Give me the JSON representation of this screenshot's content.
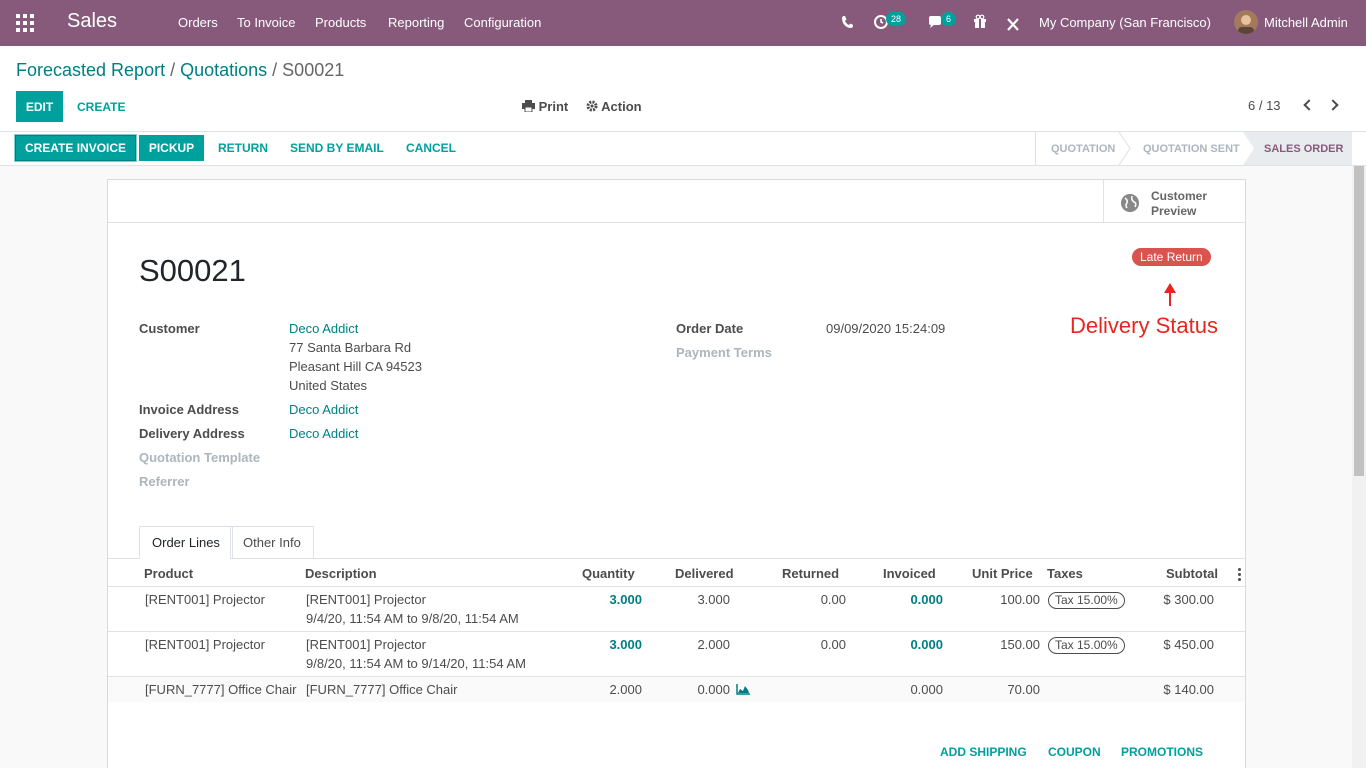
{
  "topbar": {
    "app_name": "Sales",
    "menus": [
      "Orders",
      "To Invoice",
      "Products",
      "Reporting",
      "Configuration"
    ],
    "activity_count": "28",
    "message_count": "6",
    "company": "My Company (San Francisco)",
    "user": "Mitchell Admin"
  },
  "breadcrumb": {
    "items": [
      "Forecasted Report",
      "Quotations"
    ],
    "current": "S00021"
  },
  "actions": {
    "edit": "EDIT",
    "create": "CREATE",
    "print": "Print",
    "action": "Action",
    "pager": "6 / 13"
  },
  "statusbar": {
    "buttons": [
      "CREATE INVOICE",
      "PICKUP",
      "RETURN",
      "SEND BY EMAIL",
      "CANCEL"
    ],
    "stages": [
      "QUOTATION",
      "QUOTATION SENT",
      "SALES ORDER"
    ],
    "active_stage": "SALES ORDER"
  },
  "sheet": {
    "customer_preview": [
      "Customer",
      "Preview"
    ],
    "title": "S00021",
    "ribbon": "Late Return",
    "annotation": "Delivery Status",
    "fields_left": {
      "customer_label": "Customer",
      "customer_name": "Deco Addict",
      "customer_address": [
        "77 Santa Barbara Rd",
        "Pleasant Hill CA 94523",
        "United States"
      ],
      "invoice_label": "Invoice Address",
      "invoice_value": "Deco Addict",
      "delivery_label": "Delivery Address",
      "delivery_value": "Deco Addict",
      "template_label": "Quotation Template",
      "referrer_label": "Referrer"
    },
    "fields_right": {
      "order_date_label": "Order Date",
      "order_date_value": "09/09/2020 15:24:09",
      "payment_terms_label": "Payment Terms"
    },
    "tabs": [
      "Order Lines",
      "Other Info"
    ],
    "columns": [
      "Product",
      "Description",
      "Quantity",
      "Delivered",
      "Returned",
      "Invoiced",
      "Unit Price",
      "Taxes",
      "Subtotal"
    ],
    "rows": [
      {
        "product": "[RENT001] Projector",
        "desc1": "[RENT001] Projector",
        "desc2": "9/4/20, 11:54 AM to 9/8/20, 11:54 AM",
        "qty": "3.000",
        "delivered": "3.000",
        "returned": "0.00",
        "invoiced": "0.000",
        "price": "100.00",
        "tax": "Tax 15.00%",
        "subtotal": "$ 300.00"
      },
      {
        "product": "[RENT001] Projector",
        "desc1": "[RENT001] Projector",
        "desc2": "9/8/20, 11:54 AM to 9/14/20, 11:54 AM",
        "qty": "3.000",
        "delivered": "2.000",
        "returned": "0.00",
        "invoiced": "0.000",
        "price": "150.00",
        "tax": "Tax 15.00%",
        "subtotal": "$ 450.00"
      },
      {
        "product": "[FURN_7777] Office Chair",
        "desc1": "[FURN_7777] Office Chair",
        "desc2": "",
        "qty": "2.000",
        "delivered": "0.000",
        "returned": "",
        "invoiced": "0.000",
        "price": "70.00",
        "tax": "",
        "subtotal": "$ 140.00"
      }
    ],
    "footer_links": [
      "ADD SHIPPING",
      "COUPON",
      "PROMOTIONS"
    ]
  },
  "colors": {
    "brand": "#875a7b",
    "primary": "#00a09d",
    "link": "#017e84",
    "danger": "#d9534f"
  }
}
